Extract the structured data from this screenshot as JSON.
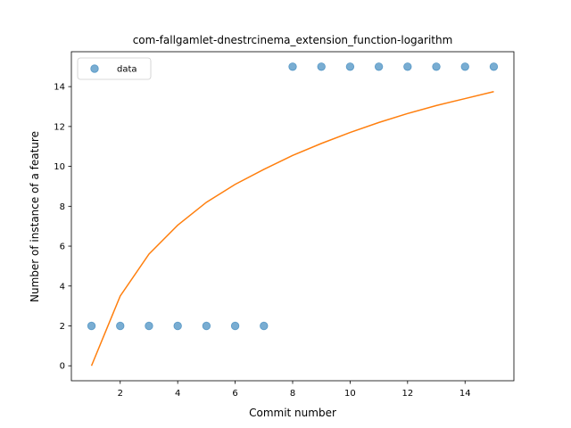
{
  "chart_data": {
    "type": "scatter",
    "title": "com-fallgamlet-dnestrcinema_extension_function-logarithm",
    "xlabel": "Commit number",
    "ylabel": "Number of instance of a feature",
    "xlim": [
      0.3,
      15.7
    ],
    "ylim": [
      -0.75,
      15.75
    ],
    "xticks": [
      2,
      4,
      6,
      8,
      10,
      12,
      14
    ],
    "yticks": [
      0,
      2,
      4,
      6,
      8,
      10,
      12,
      14
    ],
    "grid": false,
    "legend_position": "top-left",
    "series": [
      {
        "name": "data",
        "kind": "scatter",
        "color": "#1f77b4",
        "x": [
          1,
          2,
          3,
          4,
          5,
          6,
          7,
          8,
          9,
          10,
          11,
          12,
          13,
          14,
          15
        ],
        "y": [
          2,
          2,
          2,
          2,
          2,
          2,
          2,
          15,
          15,
          15,
          15,
          15,
          15,
          15,
          15
        ]
      },
      {
        "kind": "line",
        "color": "#ff7f0e",
        "x": [
          1,
          2,
          3,
          4,
          5,
          6,
          7,
          8,
          9,
          10,
          11,
          12,
          13,
          14,
          15
        ],
        "y": [
          0,
          3.5,
          5.6,
          7.05,
          8.2,
          9.1,
          9.85,
          10.55,
          11.15,
          11.7,
          12.2,
          12.65,
          13.05,
          13.4,
          13.75
        ]
      }
    ]
  }
}
